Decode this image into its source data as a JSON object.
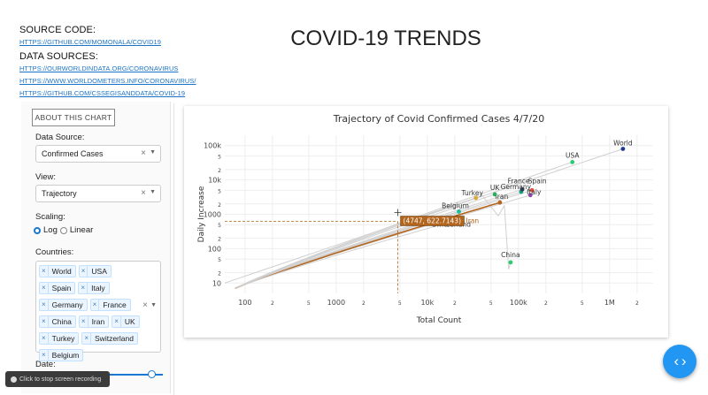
{
  "sources": {
    "source_code_label": "SOURCE CODE:",
    "source_code_link": "HTTPS://GITHUB.COM/MOMONALA/COVID19",
    "data_sources_label": "DATA SOURCES:",
    "data_links": [
      "HTTPS://OURWORLDINDATA.ORG/CORONAVIRUS",
      "HTTPS://WWW.WORLDOMETERS.INFO/CORONAVIRUS/",
      "HTTPS://GITHUB.COM/CSSEGISANDDATA/COVID-19"
    ]
  },
  "page_title": "COVID-19 TRENDS",
  "controls": {
    "about_button": "ABOUT THIS CHART",
    "data_source_label": "Data Source:",
    "data_source_value": "Confirmed Cases",
    "view_label": "View:",
    "view_value": "Trajectory",
    "scaling_label": "Scaling:",
    "scaling_options": [
      "Log",
      "Linear"
    ],
    "scaling_selected": "Log",
    "countries_label": "Countries:",
    "countries": [
      "World",
      "USA",
      "Spain",
      "Italy",
      "Germany",
      "France",
      "China",
      "Iran",
      "UK",
      "Turkey",
      "Switzerland",
      "Belgium"
    ],
    "date_label": "Date:",
    "clear_symbol": "×",
    "caret_symbol": "▼",
    "date_slider_fraction": 1.0
  },
  "fab_icon": "code-brackets-icon",
  "fab_glyph": "‹ ›",
  "recording": {
    "text": "Click  to stop screen recording",
    "icon": "stop-record-icon"
  },
  "colors": {
    "accent": "#2196f3",
    "link": "#1a73c7",
    "tooltip_bg": "#b3651d",
    "iran_line": "#b3651d"
  },
  "chart_data": {
    "type": "line",
    "title": "Trajectory of Covid Confirmed Cases 4/7/20",
    "xlabel": "Total Count",
    "ylabel": "Daily Increase",
    "xscale": "log",
    "yscale": "log",
    "xlim": [
      60,
      3000000
    ],
    "ylim": [
      5,
      200000
    ],
    "x_ticks": [
      {
        "v": 100,
        "t": "100"
      },
      {
        "v": 200,
        "t": "2"
      },
      {
        "v": 500,
        "t": "5"
      },
      {
        "v": 1000,
        "t": "1000"
      },
      {
        "v": 2000,
        "t": "2"
      },
      {
        "v": 5000,
        "t": "5"
      },
      {
        "v": 10000,
        "t": "10k"
      },
      {
        "v": 20000,
        "t": "2"
      },
      {
        "v": 50000,
        "t": "5"
      },
      {
        "v": 100000,
        "t": "100k"
      },
      {
        "v": 200000,
        "t": "2"
      },
      {
        "v": 500000,
        "t": "5"
      },
      {
        "v": 1000000,
        "t": "1M"
      },
      {
        "v": 2000000,
        "t": "2"
      }
    ],
    "y_ticks": [
      {
        "v": 10,
        "t": "10"
      },
      {
        "v": 20,
        "t": "2"
      },
      {
        "v": 50,
        "t": "5"
      },
      {
        "v": 100,
        "t": "100"
      },
      {
        "v": 200,
        "t": "2"
      },
      {
        "v": 500,
        "t": "5"
      },
      {
        "v": 1000,
        "t": "1000"
      },
      {
        "v": 2000,
        "t": "2"
      },
      {
        "v": 5000,
        "t": "5"
      },
      {
        "v": 10000,
        "t": "10k"
      },
      {
        "v": 20000,
        "t": "2"
      },
      {
        "v": 50000,
        "t": "5"
      },
      {
        "v": 100000,
        "t": "100k"
      }
    ],
    "series": [
      {
        "name": "World",
        "color": "#1f3a93",
        "end": [
          1400000,
          80000
        ]
      },
      {
        "name": "USA",
        "color": "#2ecc71",
        "end": [
          390000,
          33000
        ]
      },
      {
        "name": "Spain",
        "color": "#e74c3c",
        "end": [
          141000,
          5000
        ]
      },
      {
        "name": "Italy",
        "color": "#8e44ad",
        "end": [
          135000,
          3600
        ]
      },
      {
        "name": "Germany",
        "color": "#16a085",
        "end": [
          107000,
          4500
        ]
      },
      {
        "name": "France",
        "color": "#2c3e50",
        "end": [
          110000,
          5300
        ]
      },
      {
        "name": "China",
        "color": "#2ecc71",
        "end": [
          81800,
          40
        ]
      },
      {
        "name": "Iran",
        "color": "#b3651d",
        "end": [
          62600,
          2200
        ]
      },
      {
        "name": "UK",
        "color": "#27ae60",
        "end": [
          55000,
          3800
        ]
      },
      {
        "name": "Turkey",
        "color": "#d4ac3f",
        "end": [
          34100,
          3000
        ]
      },
      {
        "name": "Switzerland",
        "color": "#7f8c8d",
        "end": [
          22000,
          700
        ]
      },
      {
        "name": "Belgium",
        "color": "#1abc9c",
        "end": [
          22200,
          1200
        ]
      }
    ],
    "hover": {
      "x": 4747,
      "y": 622.7143,
      "text": "(4747, 622.7143)",
      "series": "Iran"
    }
  }
}
